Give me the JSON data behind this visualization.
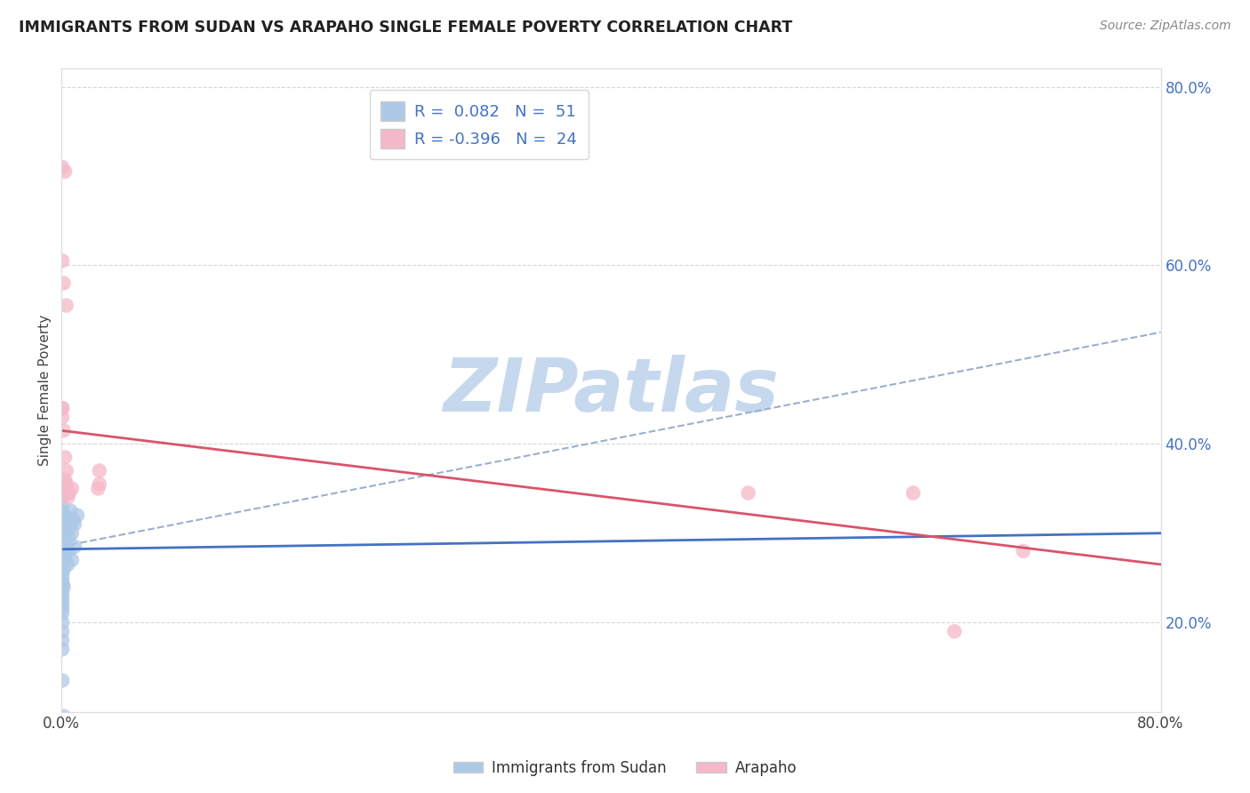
{
  "title": "IMMIGRANTS FROM SUDAN VS ARAPAHO SINGLE FEMALE POVERTY CORRELATION CHART",
  "source": "Source: ZipAtlas.com",
  "ylabel": "Single Female Poverty",
  "legend_labels": [
    "Immigrants from Sudan",
    "Arapaho"
  ],
  "blue_R": 0.082,
  "blue_N": 51,
  "pink_R": -0.396,
  "pink_N": 24,
  "blue_color": "#adc9e8",
  "pink_color": "#f5b8c8",
  "blue_line_color": "#4472c4",
  "pink_line_color": "#d9546a",
  "dashed_line_color": "#9ab0cc",
  "watermark_color": "#c5d8ee",
  "blue_scatter": [
    [
      0.001,
      0.285
    ],
    [
      0.001,
      0.29
    ],
    [
      0.001,
      0.295
    ],
    [
      0.001,
      0.3
    ],
    [
      0.001,
      0.305
    ],
    [
      0.001,
      0.31
    ],
    [
      0.001,
      0.315
    ],
    [
      0.001,
      0.32
    ],
    [
      0.001,
      0.325
    ],
    [
      0.001,
      0.33
    ],
    [
      0.001,
      0.34
    ],
    [
      0.001,
      0.27
    ],
    [
      0.001,
      0.265
    ],
    [
      0.001,
      0.26
    ],
    [
      0.001,
      0.255
    ],
    [
      0.001,
      0.25
    ],
    [
      0.001,
      0.245
    ],
    [
      0.001,
      0.24
    ],
    [
      0.001,
      0.235
    ],
    [
      0.001,
      0.23
    ],
    [
      0.001,
      0.225
    ],
    [
      0.001,
      0.22
    ],
    [
      0.001,
      0.215
    ],
    [
      0.001,
      0.21
    ],
    [
      0.001,
      0.2
    ],
    [
      0.001,
      0.19
    ],
    [
      0.001,
      0.18
    ],
    [
      0.001,
      0.17
    ],
    [
      0.002,
      0.3
    ],
    [
      0.002,
      0.28
    ],
    [
      0.002,
      0.26
    ],
    [
      0.002,
      0.24
    ],
    [
      0.003,
      0.32
    ],
    [
      0.003,
      0.29
    ],
    [
      0.003,
      0.27
    ],
    [
      0.004,
      0.31
    ],
    [
      0.004,
      0.28
    ],
    [
      0.005,
      0.305
    ],
    [
      0.005,
      0.265
    ],
    [
      0.006,
      0.295
    ],
    [
      0.006,
      0.28
    ],
    [
      0.007,
      0.325
    ],
    [
      0.007,
      0.31
    ],
    [
      0.008,
      0.3
    ],
    [
      0.008,
      0.27
    ],
    [
      0.009,
      0.315
    ],
    [
      0.01,
      0.31
    ],
    [
      0.01,
      0.285
    ],
    [
      0.012,
      0.32
    ],
    [
      0.002,
      0.095
    ],
    [
      0.001,
      0.135
    ]
  ],
  "pink_scatter": [
    [
      0.001,
      0.71
    ],
    [
      0.003,
      0.705
    ],
    [
      0.001,
      0.605
    ],
    [
      0.002,
      0.58
    ],
    [
      0.004,
      0.555
    ],
    [
      0.001,
      0.44
    ],
    [
      0.001,
      0.43
    ],
    [
      0.002,
      0.415
    ],
    [
      0.003,
      0.385
    ],
    [
      0.004,
      0.37
    ],
    [
      0.001,
      0.355
    ],
    [
      0.004,
      0.355
    ],
    [
      0.003,
      0.36
    ],
    [
      0.005,
      0.34
    ],
    [
      0.008,
      0.35
    ],
    [
      0.006,
      0.345
    ],
    [
      0.028,
      0.37
    ],
    [
      0.027,
      0.35
    ],
    [
      0.028,
      0.355
    ],
    [
      0.62,
      0.345
    ],
    [
      0.7,
      0.28
    ],
    [
      0.65,
      0.19
    ],
    [
      0.5,
      0.345
    ],
    [
      0.001,
      0.44
    ]
  ],
  "xlim": [
    0.0,
    0.8
  ],
  "ylim": [
    0.1,
    0.82
  ],
  "ytick_positions": [
    0.2,
    0.4,
    0.6,
    0.8
  ],
  "ytick_labels": [
    "20.0%",
    "40.0%",
    "60.0%",
    "80.0%"
  ],
  "xtick_positions": [
    0.0,
    0.8
  ],
  "xtick_labels": [
    "0.0%",
    "80.0%"
  ]
}
